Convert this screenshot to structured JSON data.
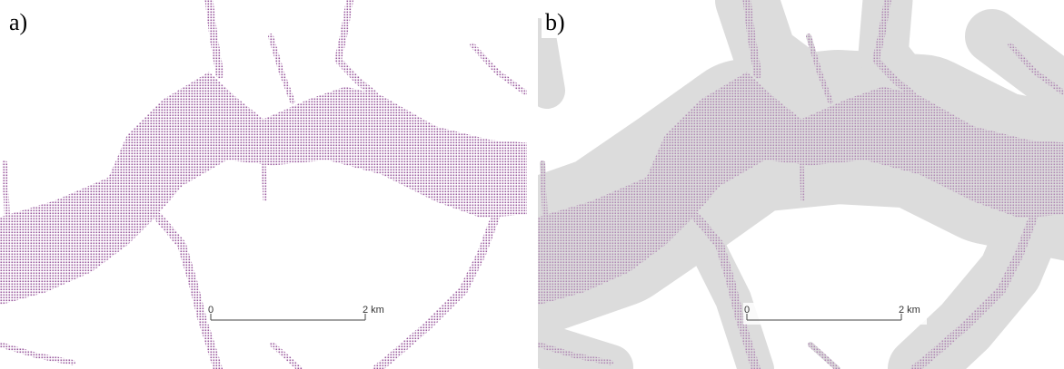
{
  "panels": [
    {
      "label": "a)",
      "scale_bar": {
        "start": "0",
        "end": "2 km"
      }
    },
    {
      "label": "b)",
      "scale_bar": {
        "start": "0",
        "end": "2 km"
      }
    }
  ]
}
